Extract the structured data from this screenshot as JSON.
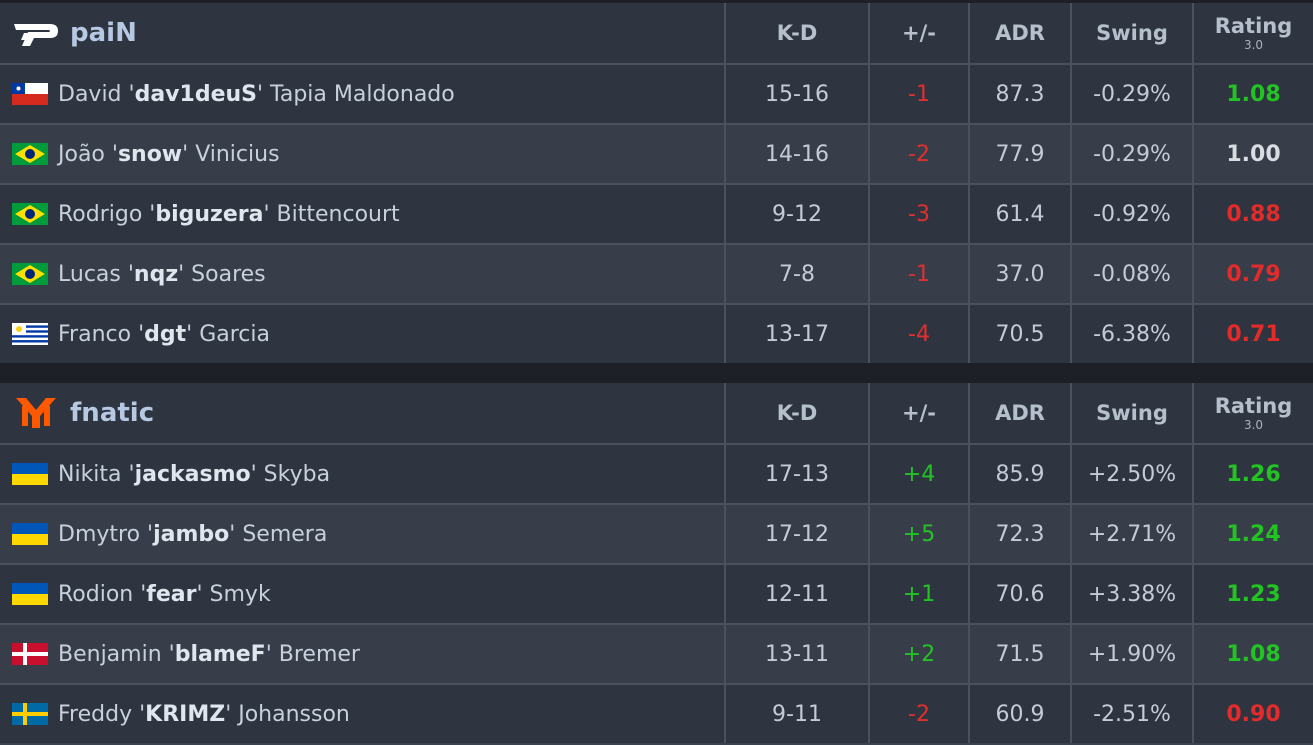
{
  "headers": {
    "kd": "K-D",
    "pm": "+/-",
    "adr": "ADR",
    "swing": "Swing",
    "rating": "Rating",
    "rating_sub": "3.0"
  },
  "teams": [
    {
      "name": "paiN",
      "logo": "pain-logo",
      "players": [
        {
          "first": "David",
          "nick": "dav1deuS",
          "last": "Tapia Maldonado",
          "flag": "chile-flag",
          "kd": "15-16",
          "pm": "-1",
          "adr": "87.3",
          "swing": "-0.29%",
          "rating": "1.08",
          "rating_class": "green",
          "pm_class": "neg"
        },
        {
          "first": "João",
          "nick": "snow",
          "last": "Vinicius",
          "flag": "brazil-flag",
          "kd": "14-16",
          "pm": "-2",
          "adr": "77.9",
          "swing": "-0.29%",
          "rating": "1.00",
          "rating_class": "white",
          "pm_class": "neg"
        },
        {
          "first": "Rodrigo",
          "nick": "biguzera",
          "last": "Bittencourt",
          "flag": "brazil-flag",
          "kd": "9-12",
          "pm": "-3",
          "adr": "61.4",
          "swing": "-0.92%",
          "rating": "0.88",
          "rating_class": "red",
          "pm_class": "neg"
        },
        {
          "first": "Lucas",
          "nick": "nqz",
          "last": "Soares",
          "flag": "brazil-flag",
          "kd": "7-8",
          "pm": "-1",
          "adr": "37.0",
          "swing": "-0.08%",
          "rating": "0.79",
          "rating_class": "red",
          "pm_class": "neg"
        },
        {
          "first": "Franco",
          "nick": "dgt",
          "last": "Garcia",
          "flag": "uruguay-flag",
          "kd": "13-17",
          "pm": "-4",
          "adr": "70.5",
          "swing": "-6.38%",
          "rating": "0.71",
          "rating_class": "red",
          "pm_class": "neg"
        }
      ]
    },
    {
      "name": "fnatic",
      "logo": "fnatic-logo",
      "players": [
        {
          "first": "Nikita",
          "nick": "jackasmo",
          "last": "Skyba",
          "flag": "ukraine-flag",
          "kd": "17-13",
          "pm": "+4",
          "adr": "85.9",
          "swing": "+2.50%",
          "rating": "1.26",
          "rating_class": "green",
          "pm_class": "pos"
        },
        {
          "first": "Dmytro",
          "nick": "jambo",
          "last": "Semera",
          "flag": "ukraine-flag",
          "kd": "17-12",
          "pm": "+5",
          "adr": "72.3",
          "swing": "+2.71%",
          "rating": "1.24",
          "rating_class": "green",
          "pm_class": "pos"
        },
        {
          "first": "Rodion",
          "nick": "fear",
          "last": "Smyk",
          "flag": "ukraine-flag",
          "kd": "12-11",
          "pm": "+1",
          "adr": "70.6",
          "swing": "+3.38%",
          "rating": "1.23",
          "rating_class": "green",
          "pm_class": "pos"
        },
        {
          "first": "Benjamin",
          "nick": "blameF",
          "last": "Bremer",
          "flag": "denmark-flag",
          "kd": "13-11",
          "pm": "+2",
          "adr": "71.5",
          "swing": "+1.90%",
          "rating": "1.08",
          "rating_class": "green",
          "pm_class": "pos"
        },
        {
          "first": "Freddy",
          "nick": "KRIMZ",
          "last": "Johansson",
          "flag": "sweden-flag",
          "kd": "9-11",
          "pm": "-2",
          "adr": "60.9",
          "swing": "-2.51%",
          "rating": "0.90",
          "rating_class": "red",
          "pm_class": "neg"
        }
      ]
    }
  ],
  "colors": {
    "positive": "#23c323",
    "negative": "#e02f2f",
    "rating_green": "#22c422",
    "rating_red": "#e32b2b",
    "fnatic_orange": "#ff5900"
  }
}
